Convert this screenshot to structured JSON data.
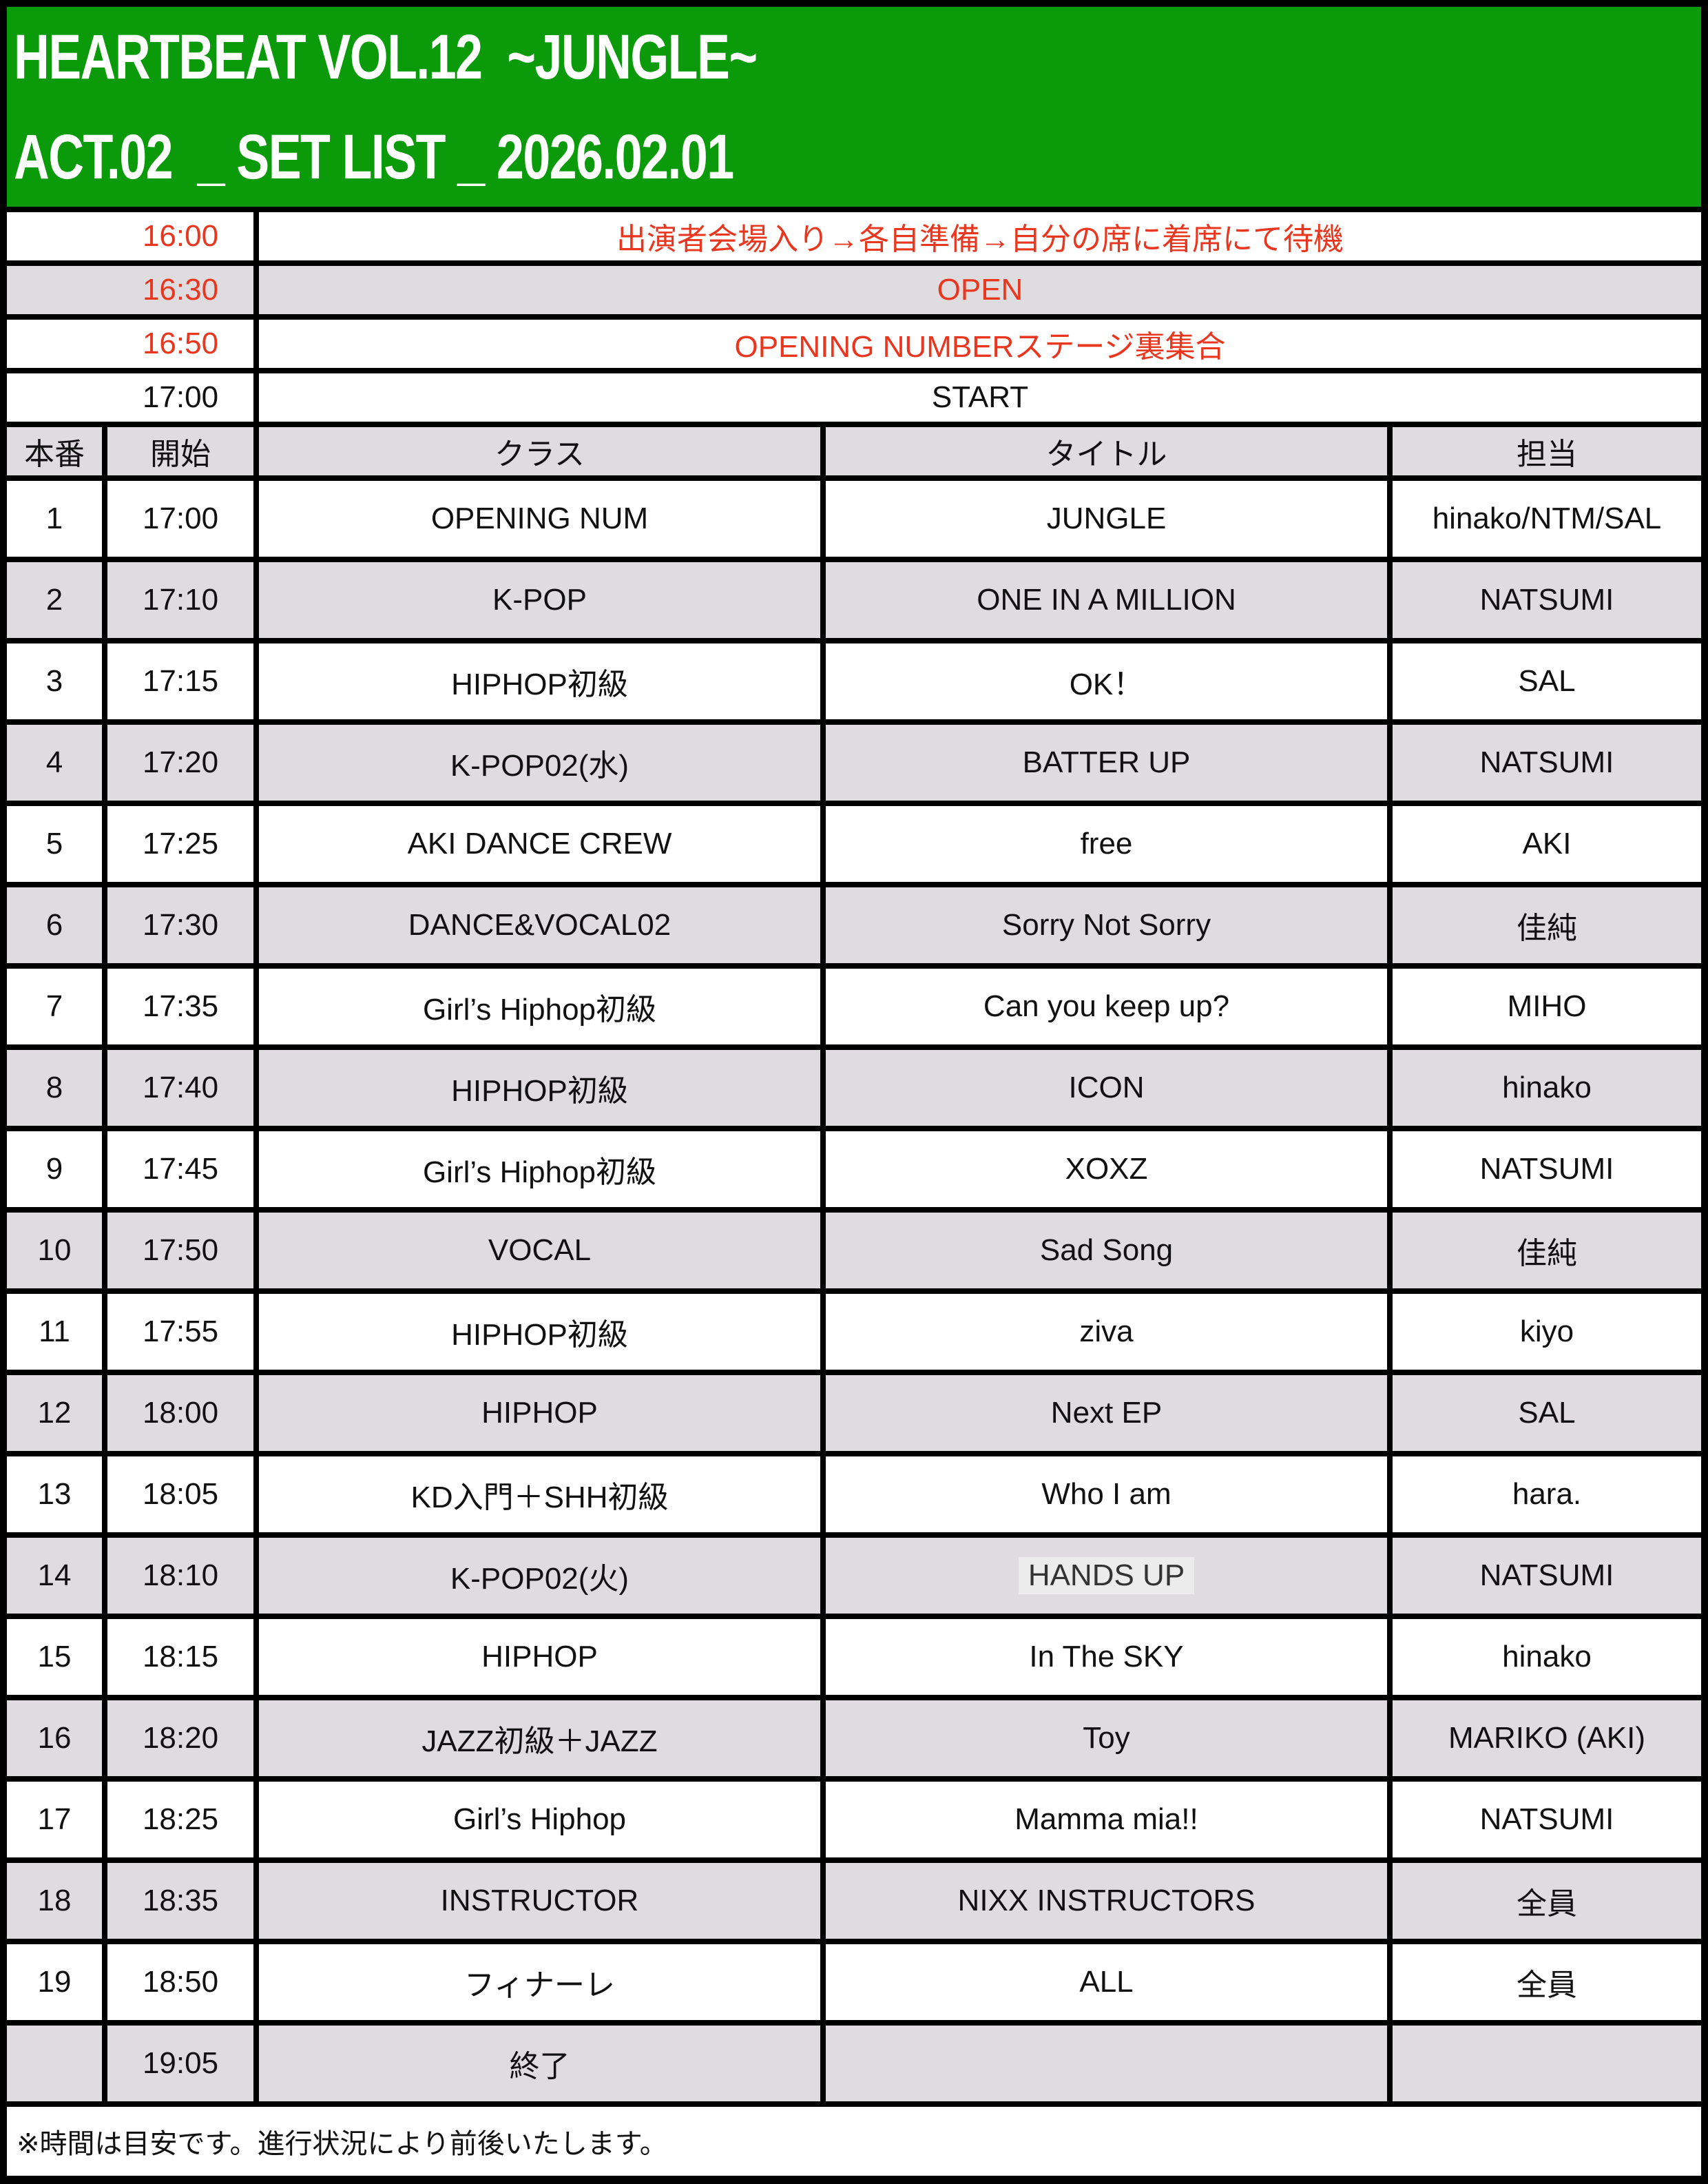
{
  "header": {
    "line1": "HEARTBEAT VOL.12  ~JUNGLE~",
    "line2": "ACT.02  _ SET LIST _ 2026.02.01",
    "bg_color": "#0a9a0a"
  },
  "pre_schedule": [
    {
      "time": "16:00",
      "desc": "出演者会場入り→各自準備→自分の席に着席にて待機",
      "red": true,
      "shaded": false
    },
    {
      "time": "16:30",
      "desc": "OPEN",
      "red": true,
      "shaded": true
    },
    {
      "time": "16:50",
      "desc": "OPENING NUMBERステージ裏集合",
      "red": true,
      "shaded": false
    },
    {
      "time": "17:00",
      "desc": "START",
      "red": false,
      "shaded": false
    }
  ],
  "columns": [
    "本番",
    "開始",
    "クラス",
    "タイトル",
    "担当"
  ],
  "rows": [
    {
      "no": "1",
      "start": "17:00",
      "class": "OPENING NUM",
      "title": "JUNGLE",
      "charge": "hinako/NTM/SAL"
    },
    {
      "no": "2",
      "start": "17:10",
      "class": "K-POP",
      "title": "ONE IN A MILLION",
      "charge": "NATSUMI"
    },
    {
      "no": "3",
      "start": "17:15",
      "class": "HIPHOP初級",
      "title": "OK！",
      "charge": "SAL"
    },
    {
      "no": "4",
      "start": "17:20",
      "class": "K-POP02(水)",
      "title": "BATTER UP",
      "charge": "NATSUMI"
    },
    {
      "no": "5",
      "start": "17:25",
      "class": "AKI DANCE CREW",
      "title": "free",
      "charge": "AKI"
    },
    {
      "no": "6",
      "start": "17:30",
      "class": "DANCE&VOCAL02",
      "title": "Sorry Not Sorry",
      "charge": "佳純"
    },
    {
      "no": "7",
      "start": "17:35",
      "class": "Girl’s Hiphop初級",
      "title": "Can you keep up?",
      "charge": "MIHO"
    },
    {
      "no": "8",
      "start": "17:40",
      "class": "HIPHOP初級",
      "title": "ICON",
      "charge": "hinako"
    },
    {
      "no": "9",
      "start": "17:45",
      "class": "Girl’s Hiphop初級",
      "title": "XOXZ",
      "charge": "NATSUMI"
    },
    {
      "no": "10",
      "start": "17:50",
      "class": "VOCAL",
      "title": "Sad Song",
      "charge": "佳純"
    },
    {
      "no": "11",
      "start": "17:55",
      "class": "HIPHOP初級",
      "title": "ziva",
      "charge": "kiyo"
    },
    {
      "no": "12",
      "start": "18:00",
      "class": "HIPHOP",
      "title": "Next EP",
      "charge": "SAL"
    },
    {
      "no": "13",
      "start": "18:05",
      "class": "KD入門＋SHH初級",
      "title": "Who I am",
      "charge": "hara."
    },
    {
      "no": "14",
      "start": "18:10",
      "class": "K-POP02(火)",
      "title": "HANDS UP",
      "charge": "NATSUMI",
      "highlight": true
    },
    {
      "no": "15",
      "start": "18:15",
      "class": "HIPHOP",
      "title": "In The SKY",
      "charge": "hinako"
    },
    {
      "no": "16",
      "start": "18:20",
      "class": "JAZZ初級＋JAZZ",
      "title": "Toy",
      "charge": "MARIKO (AKI)"
    },
    {
      "no": "17",
      "start": "18:25",
      "class": "Girl’s Hiphop",
      "title": "Mamma mia!!",
      "charge": "NATSUMI"
    },
    {
      "no": "18",
      "start": "18:35",
      "class": "INSTRUCTOR",
      "title": "NIXX INSTRUCTORS",
      "charge": "全員"
    },
    {
      "no": "19",
      "start": "18:50",
      "class": "フィナーレ",
      "title": "ALL",
      "charge": "全員"
    },
    {
      "no": "",
      "start": "19:05",
      "class": "終了",
      "title": "",
      "charge": ""
    }
  ],
  "footnote": "※時間は目安です。進行状況により前後いたします。",
  "colors": {
    "red_text": "#e8361f",
    "shaded_row": "#dedcdf",
    "border": "#000000"
  }
}
